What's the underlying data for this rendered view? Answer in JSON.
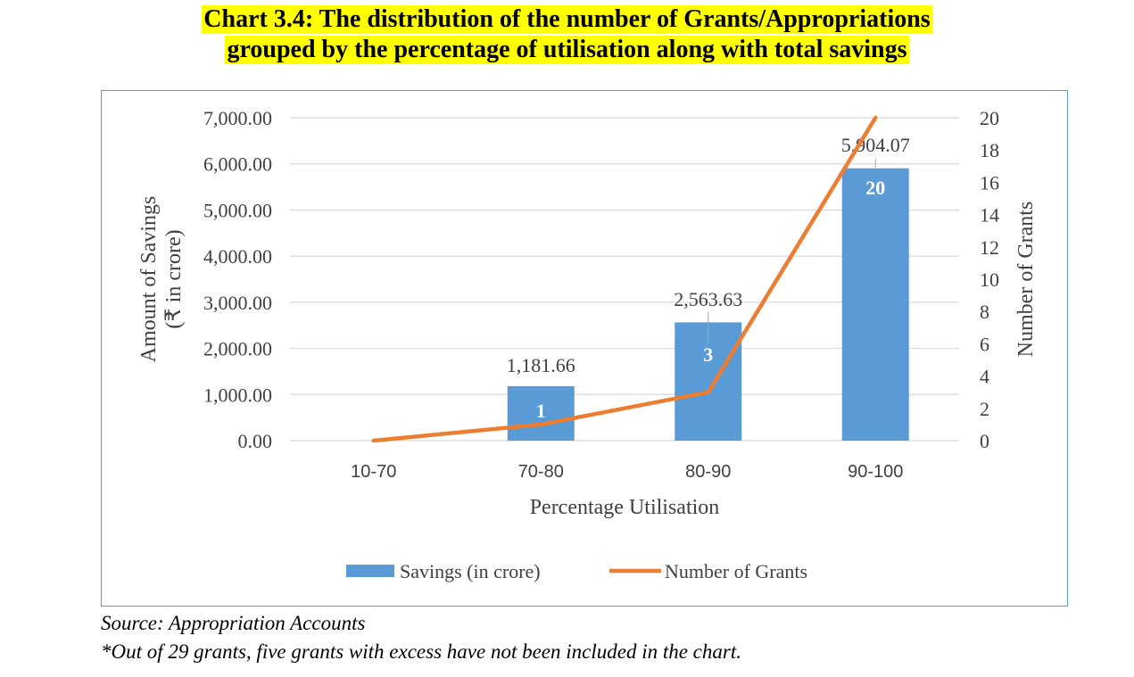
{
  "title": {
    "line1": "Chart 3.4: The distribution of the number of Grants/Appropriations",
    "line2": "grouped by the percentage of utilisation along with total savings"
  },
  "chart_data": {
    "type": "bar",
    "categories": [
      "10-70",
      "70-80",
      "80-90",
      "90-100"
    ],
    "series": [
      {
        "name": "Savings (in crore)",
        "type": "bar",
        "axis": "left",
        "values": [
          0,
          1181.66,
          2563.63,
          5904.07
        ],
        "labels": [
          "",
          "1,181.66",
          "2,563.63",
          "5,904.07"
        ],
        "color": "#5b9bd5"
      },
      {
        "name": "Number of Grants",
        "type": "line",
        "axis": "right",
        "values": [
          0,
          1,
          3,
          20
        ],
        "labels": [
          "",
          "1",
          "3",
          "20"
        ],
        "color": "#ed7d31"
      }
    ],
    "xlabel": "Percentage Utilisation",
    "ylabel_left": [
      "Amount of Savings",
      "(₹ in crore)"
    ],
    "ylabel_right": "Number of Grants",
    "ylim_left": [
      0,
      7000
    ],
    "yticks_left": [
      "0.00",
      "1,000.00",
      "2,000.00",
      "3,000.00",
      "4,000.00",
      "5,000.00",
      "6,000.00",
      "7,000.00"
    ],
    "ylim_right": [
      0,
      20
    ],
    "yticks_right": [
      "0",
      "2",
      "4",
      "6",
      "8",
      "10",
      "12",
      "14",
      "16",
      "18",
      "20"
    ],
    "grid": true,
    "legend": "bottom"
  },
  "notes": {
    "source": "Source: Appropriation Accounts",
    "footnote": "*Out of 29 grants, five grants with excess have not been included in the chart."
  }
}
